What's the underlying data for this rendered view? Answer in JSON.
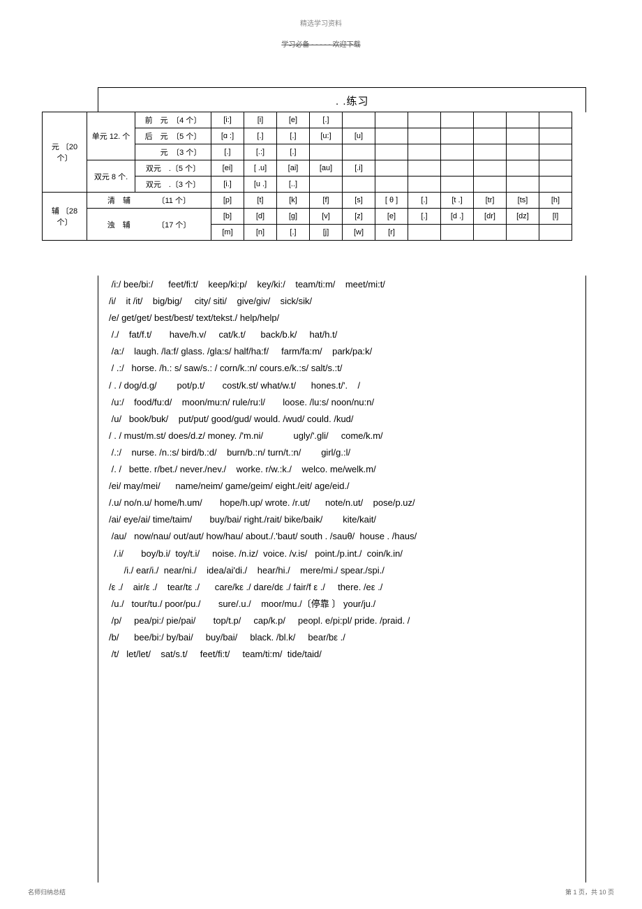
{
  "header": {
    "small_top": "精选学习资料",
    "strike": "学习必备 - - - - - 欢迎下载"
  },
  "title": ".                    .练习",
  "table": {
    "rows": [
      {
        "c1": "元\n〔20 个〕",
        "c1_rowspan": 5,
        "c2": "单元\n12. 个",
        "c2_rowspan": 3,
        "c3": "前　元　〔4 个〕",
        "cells": [
          "[i:]",
          "[i]",
          "[e]",
          "[.]",
          "",
          "",
          "",
          "",
          "",
          "",
          ""
        ]
      },
      {
        "c3": "后　元　〔5 个〕",
        "cells": [
          "[ɑ :]",
          "[.]",
          "[.]",
          "[u:]",
          "[u]",
          "",
          "",
          "",
          "",
          "",
          ""
        ]
      },
      {
        "c3": "　　元　〔3 个〕",
        "cells": [
          "[.]",
          "[.:]",
          "[.]",
          "",
          "",
          "",
          "",
          "",
          "",
          "",
          ""
        ]
      },
      {
        "c2": "双元\n8 个.",
        "c2_rowspan": 2,
        "c3": "双元　.〔5 个〕",
        "cells": [
          "[ei]",
          "[ .u]",
          "[ai]",
          "[au]",
          "[.i]",
          "",
          "",
          "",
          "",
          "",
          ""
        ]
      },
      {
        "c3": "双元　.〔3 个〕",
        "cells": [
          "[i.]",
          "[u .]",
          "[..]",
          "",
          "",
          "",
          "",
          "",
          "",
          "",
          ""
        ]
      },
      {
        "c1": "辅\n〔28 个〕",
        "c1_rowspan": 3,
        "c2": "清　辅",
        "c2_colspan": 2,
        "c2_extra": "〔11 个〕",
        "cells": [
          "[p]",
          "[t]",
          "[k]",
          "[f]",
          "[s]",
          "[ θ ]",
          "[.]",
          "[t .]",
          "[tr]",
          "[ts]",
          "[h]"
        ]
      },
      {
        "c2": "浊　辅",
        "c2_colspan": 2,
        "c2_rowspan": 2,
        "c2_extra": "〔17 个〕",
        "cells": [
          "[b]",
          "[d]",
          "[g]",
          "[v]",
          "[z]",
          "[e]",
          "[.]",
          "[d .]",
          "[dr]",
          "[dz]",
          "[l]"
        ]
      },
      {
        "cells": [
          "[m]",
          "[n]",
          "[.]",
          "[j]",
          "[w]",
          "[r]",
          "",
          "",
          "",
          "",
          ""
        ]
      }
    ]
  },
  "lines": [
    " /i:/ bee/bi:/      feet/fi:t/    keep/ki:p/    key/ki:/    team/ti:m/    meet/mi:t/",
    "/i/    it /it/    big/big/     city/ siti/    give/giv/    sick/sik/",
    "/e/ get/get/ best/best/ text/tekst./ help/help/",
    " /./    fat/f.t/       have/h.v/     cat/k.t/      back/b.k/     hat/h.t/",
    " /a:/    laugh. /la:f/ glass. /gla:s/ half/ha:f/     farm/fa:m/    park/pa:k/",
    "",
    " / .:/   horse. /h.: s/ saw/s.: / corn/k.:n/ cours.e/k.:s/ salt/s.:t/",
    "",
    "/ . / dog/d.g/        pot/p.t/       cost/k.st/ what/w.t/      hones.t/'.    /",
    "",
    " /u:/    food/fu:d/    moon/mu:n/ rule/ru:l/       loose. /lu:s/ noon/nu:n/",
    " /u/   book/buk/    put/put/ good/gud/ would. /wud/ could. /kud/",
    "",
    "/ . / must/m.st/ does/d.z/ money. /'m.ni/            ugly/'.gli/     come/k.m/",
    "",
    " /.:/    nurse. /n.:s/ bird/b.:d/    burn/b.:n/ turn/t.:n/        girl/g.:l/",
    " /. /   bette. r/bet./ never./nev./    worke. r/w.:k./    welco. me/welk.m/",
    "",
    "/ei/ may/mei/      name/neim/ game/geim/ eight./eit/ age/eid./",
    "",
    "/.u/ no/n.u/ home/h.um/       hope/h.up/ wrote. /r.ut/      note/n.ut/    pose/p.uz/",
    "/ai/ eye/ai/ time/taim/       buy/bai/ right./rait/ bike/baik/        kite/kait/",
    "",
    " /au/   now/nau/ out/aut/ how/hau/ about./.'baut/ south . /sauθ/  house . /haus/",
    "",
    "  /.i/       boy/b.i/  toy/t.i/     noise. /n.iz/  voice. /v.is/   point./p.int./  coin/k.in/",
    "",
    "      /i./ ear/i./  near/ni./    idea/ai'di./    hear/hi./    mere/mi./ spear./spi./",
    "",
    "/ε ./    air/ε ./    tear/tε ./      care/kε ./ dare/dε ./ fair/f ε ./     there. /eε ./",
    "",
    " /u./   tour/tu./ poor/pu./       sure/.u./    moor/mu./〔停靠 〕 your/ju./",
    "",
    " /p/     pea/pi:/ pie/pai/       top/t.p/     cap/k.p/     peopl. e/pi:pl/ pride. /praid. /",
    "",
    "/b/      bee/bi:/ by/bai/     buy/bai/     black. /bl.k/     bear/bε ./",
    " /t/   let/let/    sat/s.t/     feet/fi:t/     team/ti:m/  tide/taid/"
  ],
  "footer": {
    "left": "名师归纳总结",
    "right": "第 1 页，共 10 页"
  }
}
